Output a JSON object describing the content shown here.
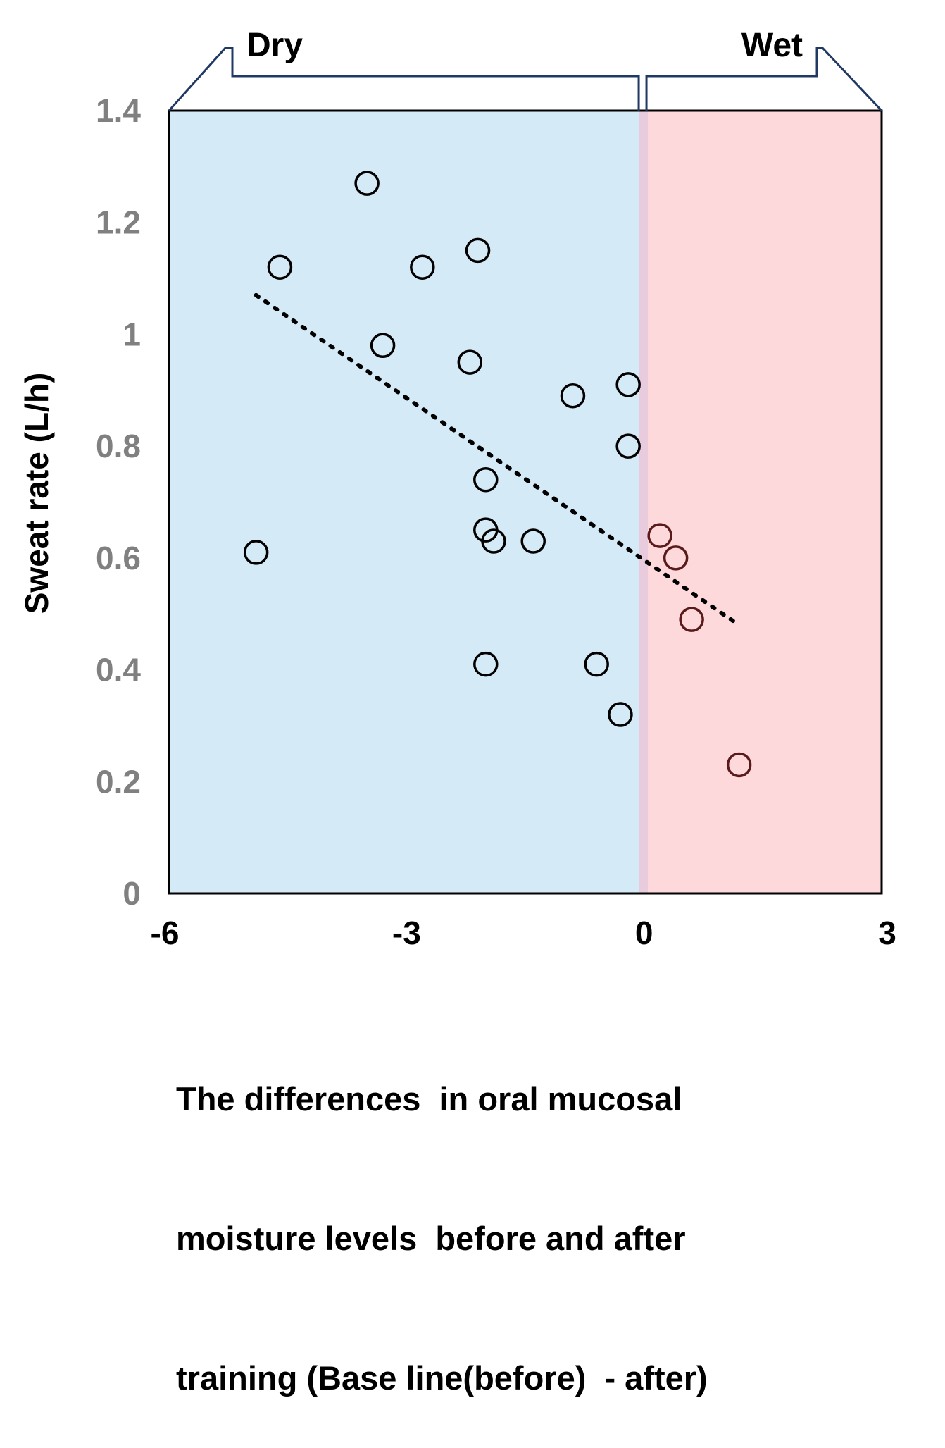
{
  "chart_data": {
    "type": "scatter",
    "title": "",
    "xlabel_lines": [
      "The differences  in oral mucosal",
      "moisture levels  before and after",
      "training (Base line(before)  - after)"
    ],
    "ylabel": "Sweat rate (L/h)",
    "xlim": [
      -6,
      3
    ],
    "ylim": [
      0,
      1.4
    ],
    "x_ticks": [
      "-6",
      "-3",
      "0",
      "3"
    ],
    "y_ticks": [
      "0",
      "0.2",
      "0.4",
      "0.6",
      "0.8",
      "1",
      "1.2",
      "1.4"
    ],
    "x_tick_values": [
      -6,
      -3,
      0,
      3
    ],
    "y_tick_values": [
      0,
      0.2,
      0.4,
      0.6,
      0.8,
      1.0,
      1.2,
      1.4
    ],
    "regions": [
      {
        "label": "Dry",
        "from": -6,
        "to": -0.05,
        "color": "#d4eaf7"
      },
      {
        "label": "Wet",
        "from": -0.05,
        "to": 3,
        "color": "#fdd9dc"
      }
    ],
    "divider_x": -0.05,
    "trendline": {
      "style": "dotted",
      "x": [
        -4.9,
        1.2
      ],
      "y": [
        1.07,
        0.48
      ]
    },
    "series": [
      {
        "name": "Dry",
        "color": "#000000",
        "points": [
          {
            "x": -4.9,
            "y": 0.61
          },
          {
            "x": -4.6,
            "y": 1.12
          },
          {
            "x": -3.5,
            "y": 1.27
          },
          {
            "x": -3.3,
            "y": 0.98
          },
          {
            "x": -2.8,
            "y": 1.12
          },
          {
            "x": -2.2,
            "y": 0.95
          },
          {
            "x": -2.1,
            "y": 1.15
          },
          {
            "x": -2.0,
            "y": 0.74
          },
          {
            "x": -2.0,
            "y": 0.65
          },
          {
            "x": -1.9,
            "y": 0.63
          },
          {
            "x": -2.0,
            "y": 0.41
          },
          {
            "x": -1.4,
            "y": 0.63
          },
          {
            "x": -0.9,
            "y": 0.89
          },
          {
            "x": -0.6,
            "y": 0.41
          },
          {
            "x": -0.2,
            "y": 0.91
          },
          {
            "x": -0.2,
            "y": 0.8
          },
          {
            "x": -0.3,
            "y": 0.32
          }
        ]
      },
      {
        "name": "Wet",
        "color": "#5a1a1a",
        "points": [
          {
            "x": 0.2,
            "y": 0.64
          },
          {
            "x": 0.4,
            "y": 0.6
          },
          {
            "x": 0.6,
            "y": 0.49
          },
          {
            "x": 1.2,
            "y": 0.23
          }
        ]
      }
    ]
  }
}
